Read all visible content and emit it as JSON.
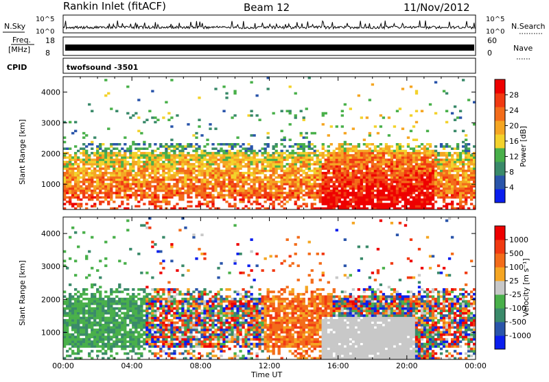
{
  "header": {
    "station": "Rankin Inlet (fitACF)",
    "beam": "Beam 12",
    "date": "11/Nov/2012"
  },
  "top_panels": {
    "nsky": {
      "label": "N.Sky",
      "ticks": [
        "10^5",
        "10^0"
      ]
    },
    "nsearch": {
      "label": "N.Search",
      "ticks": [
        "10^5",
        "10^0"
      ]
    },
    "freq": {
      "label_line1": "Freq.",
      "label_line2": "[MHz]",
      "ticks": [
        "18",
        "8"
      ]
    },
    "nave": {
      "label": "Nave",
      "ticks": [
        "60",
        "0"
      ]
    },
    "cpid": {
      "label": "CPID",
      "program": "twofsound -3501"
    }
  },
  "colors": {
    "power": [
      "#0a1eee",
      "#2a55aa",
      "#3a8a6a",
      "#49b04a",
      "#f3d22c",
      "#f5a623",
      "#f36c1a",
      "#f13a12",
      "#ee0000"
    ],
    "velocity": [
      "#0a1eee",
      "#2a55aa",
      "#3a8a6a",
      "#49b04a",
      "#c8c8c8",
      "#f5a623",
      "#f36c1a",
      "#f13a12",
      "#ee0000"
    ]
  },
  "chart_data": [
    {
      "type": "heatmap",
      "panel": "power",
      "ylabel": "Slant Range [km]",
      "y_ticks": [
        "4000",
        "3000",
        "2000",
        "1000"
      ],
      "ylim": [
        180,
        4500
      ],
      "colorbar_label": "Power [dB]",
      "colorbar_ticks": [
        "28",
        "24",
        "20",
        "16",
        "12",
        "8",
        "4"
      ]
    },
    {
      "type": "heatmap",
      "panel": "velocity",
      "ylabel": "Slant Range [km]",
      "y_ticks": [
        "4000",
        "3000",
        "2000",
        "1000"
      ],
      "ylim": [
        180,
        4500
      ],
      "colorbar_label": "Velocity [m s⁻¹]",
      "colorbar_ticks": [
        "1000",
        "500",
        "100",
        "25",
        "-25",
        "-100",
        "-500",
        "-1000"
      ]
    }
  ],
  "x_axis": {
    "label": "Time UT",
    "ticks": [
      "00:00",
      "04:00",
      "08:00",
      "12:00",
      "16:00",
      "20:00",
      "00:00"
    ]
  }
}
